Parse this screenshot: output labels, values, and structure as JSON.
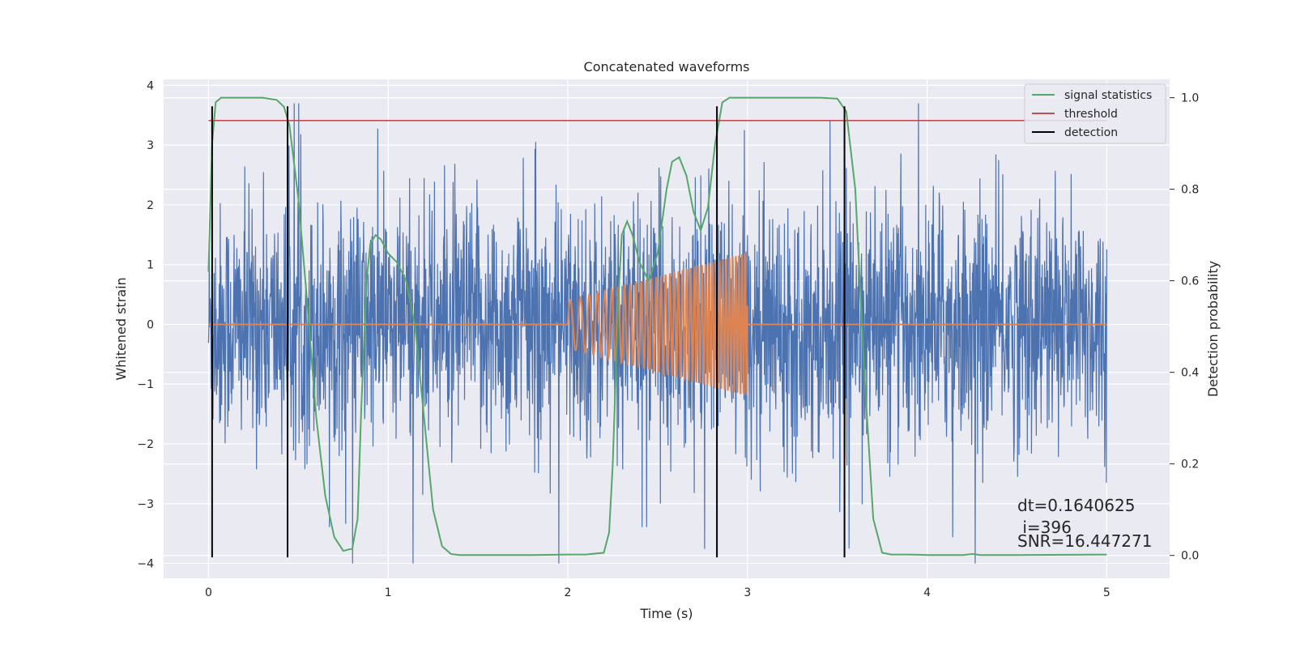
{
  "chart_data": {
    "type": "line",
    "title": "Concatenated waveforms",
    "xlabel": "Time (s)",
    "ylabel": "Whitened strain",
    "ylabel_right": "Detection probability",
    "xlim": [
      -0.25,
      5.35
    ],
    "ylim": [
      -4.25,
      4.1
    ],
    "ylim_right": [
      -0.05,
      1.04
    ],
    "xticks": [
      0,
      1,
      2,
      3,
      4,
      5
    ],
    "yticks": [
      -4,
      -3,
      -2,
      -1,
      0,
      1,
      2,
      3,
      4
    ],
    "yticks_right": [
      0.0,
      0.2,
      0.4,
      0.6,
      0.8,
      1.0
    ],
    "grid": true,
    "legend_position": "top-right",
    "legend": [
      {
        "label": "signal statistics",
        "color": "#55a868"
      },
      {
        "label": "threshold",
        "color": "#c44e52"
      },
      {
        "label": "detection",
        "color": "#000000"
      }
    ],
    "colors": {
      "strain": "#4c72b0",
      "injection": "#dd8452",
      "signal_statistics": "#55a868",
      "threshold": "#c44e52",
      "detection": "#000000",
      "axes_bg": "#eaeaf2",
      "grid": "#ffffff"
    },
    "strain_series": {
      "name": "whitened strain",
      "t_range": [
        0,
        5
      ],
      "typical_amplitude": 1.0,
      "min": -4.0,
      "max": 3.7
    },
    "injection_series": {
      "name": "injected waveform",
      "t_range": [
        2.0,
        3.0
      ],
      "amplitude_start": 0.4,
      "amplitude_end": 1.2,
      "frequency_start_hz": 16,
      "frequency_end_hz": 60
    },
    "signal_statistics": {
      "x": [
        0.0,
        0.02,
        0.04,
        0.07,
        0.1,
        0.2,
        0.3,
        0.38,
        0.42,
        0.45,
        0.5,
        0.55,
        0.6,
        0.65,
        0.7,
        0.75,
        0.8,
        0.83,
        0.85,
        0.88,
        0.9,
        0.93,
        0.96,
        1.0,
        1.05,
        1.1,
        1.15,
        1.2,
        1.25,
        1.3,
        1.35,
        1.4,
        1.6,
        1.8,
        2.0,
        2.1,
        2.2,
        2.23,
        2.25,
        2.28,
        2.3,
        2.33,
        2.36,
        2.4,
        2.45,
        2.5,
        2.55,
        2.58,
        2.62,
        2.66,
        2.7,
        2.74,
        2.78,
        2.82,
        2.86,
        2.9,
        3.0,
        3.1,
        3.2,
        3.3,
        3.4,
        3.5,
        3.55,
        3.6,
        3.65,
        3.7,
        3.75,
        3.8,
        3.9,
        4.0,
        4.1,
        4.2,
        4.25,
        4.3,
        4.5,
        5.0
      ],
      "y": [
        0.62,
        0.9,
        0.99,
        1.0,
        1.0,
        1.0,
        1.0,
        0.995,
        0.98,
        0.94,
        0.78,
        0.55,
        0.3,
        0.13,
        0.04,
        0.01,
        0.015,
        0.08,
        0.32,
        0.6,
        0.68,
        0.7,
        0.69,
        0.66,
        0.64,
        0.6,
        0.5,
        0.3,
        0.1,
        0.02,
        0.003,
        0.001,
        0.001,
        0.001,
        0.002,
        0.002,
        0.006,
        0.05,
        0.2,
        0.55,
        0.7,
        0.73,
        0.7,
        0.64,
        0.6,
        0.66,
        0.8,
        0.86,
        0.87,
        0.83,
        0.75,
        0.71,
        0.76,
        0.9,
        0.99,
        1.0,
        1.0,
        1.0,
        1.0,
        1.0,
        1.0,
        0.998,
        0.97,
        0.8,
        0.4,
        0.08,
        0.006,
        0.002,
        0.002,
        0.001,
        0.001,
        0.001,
        0.003,
        0.001,
        0.001,
        0.002
      ]
    },
    "threshold": {
      "value": 0.95,
      "x_range": [
        0,
        5
      ]
    },
    "detections": [
      0.02,
      0.44,
      2.83,
      3.54
    ],
    "detection_y_range": [
      -3.9,
      3.65
    ],
    "annotations": [
      "dt=0.1640625",
      " i=396",
      "SNR=16.447271"
    ]
  }
}
